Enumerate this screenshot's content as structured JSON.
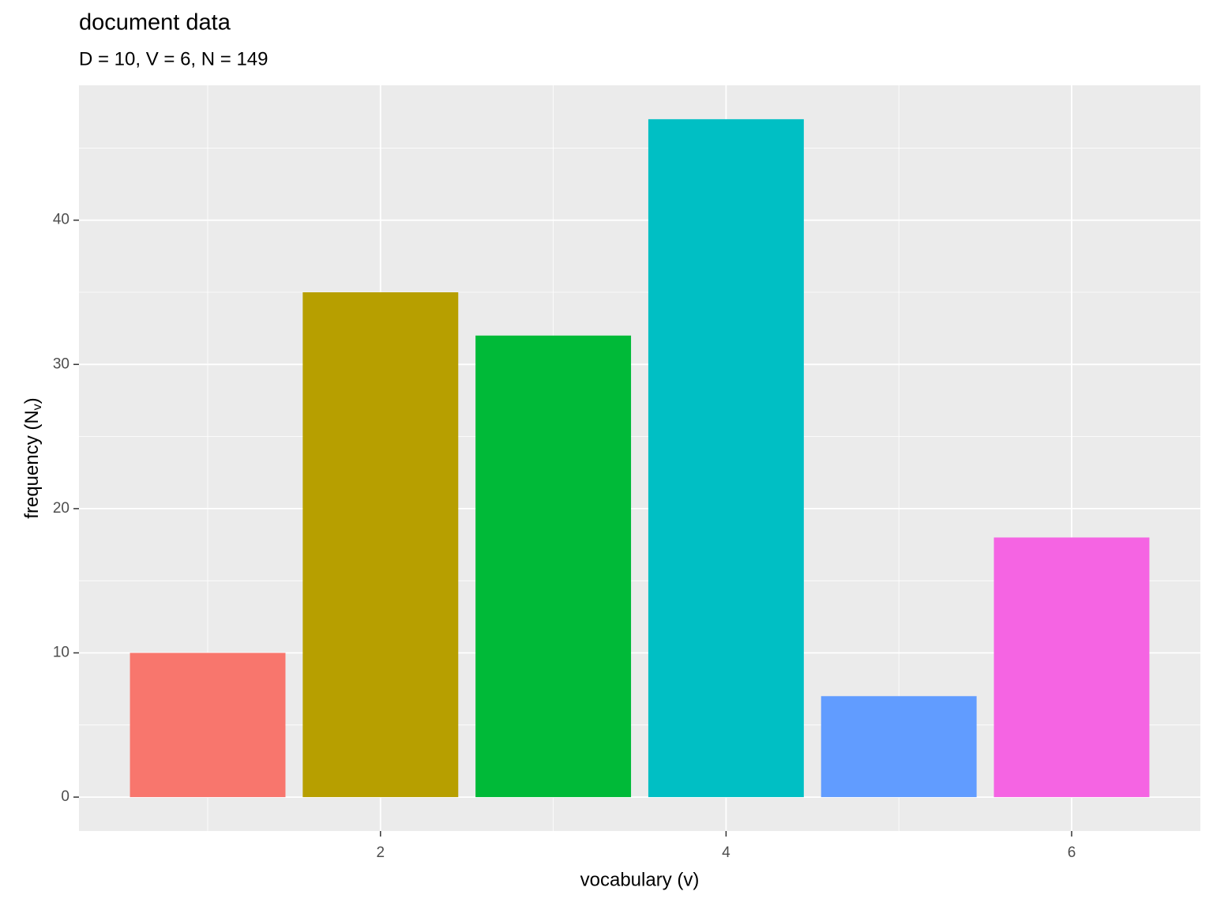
{
  "chart_data": {
    "type": "bar",
    "title": "document data",
    "subtitle": "D = 10, V = 6, N = 149",
    "x_label": "vocabulary (v)",
    "y_label_parts": [
      "frequency (N",
      "v",
      ")"
    ],
    "x": [
      1,
      2,
      3,
      4,
      5,
      6
    ],
    "values": [
      10,
      35,
      32,
      47,
      7,
      18
    ],
    "colors": [
      "#f8766d",
      "#b79f00",
      "#00ba38",
      "#00bfc4",
      "#619cff",
      "#f564e3"
    ],
    "bar_width": 0.9,
    "xlim": [
      0.255,
      6.745
    ],
    "xticks": [
      2,
      4,
      6
    ],
    "minor_xticks": [
      1,
      3,
      5
    ],
    "ylim": [
      -2.35,
      49.35
    ],
    "yticks": [
      0,
      10,
      20,
      30,
      40
    ],
    "minor_yticks": [
      5,
      15,
      25,
      35,
      45
    ],
    "grid": true
  }
}
